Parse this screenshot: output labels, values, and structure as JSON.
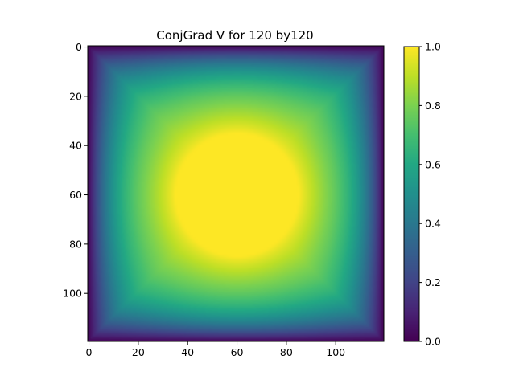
{
  "chart_data": {
    "type": "heatmap",
    "title": "ConjGrad V for 120 by120",
    "xlabel": "",
    "ylabel": "",
    "grid": {
      "rows": 120,
      "cols": 120
    },
    "xlim": [
      -0.5,
      119.5
    ],
    "ylim": [
      119.5,
      -0.5
    ],
    "x_ticks": [
      0,
      20,
      40,
      60,
      80,
      100
    ],
    "y_ticks": [
      0,
      20,
      40,
      60,
      80,
      100
    ],
    "x_tick_labels": [
      "0",
      "20",
      "40",
      "60",
      "80",
      "100"
    ],
    "y_tick_labels": [
      "0",
      "20",
      "40",
      "60",
      "80",
      "100"
    ],
    "colormap": "viridis",
    "value_range": [
      0.0,
      1.0
    ],
    "field": {
      "description": "",
      "center": [
        60,
        60
      ],
      "plateau_radius": 25,
      "plateau_value": 1.0,
      "boundary_value": 0.0
    },
    "colorbar": {
      "ticks": [
        0.0,
        0.2,
        0.4,
        0.6,
        0.8,
        1.0
      ],
      "tick_labels": [
        "0.0",
        "0.2",
        "0.4",
        "0.6",
        "0.8",
        "1.0"
      ]
    },
    "grid_lines": false,
    "legend": "none"
  }
}
